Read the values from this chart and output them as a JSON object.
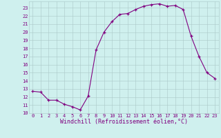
{
  "x_values": [
    0,
    1,
    2,
    3,
    4,
    5,
    6,
    7,
    8,
    9,
    10,
    11,
    12,
    13,
    14,
    15,
    16,
    17,
    18,
    19,
    20,
    21,
    22,
    23
  ],
  "y_values": [
    12.7,
    12.6,
    11.6,
    11.6,
    11.1,
    10.8,
    10.4,
    12.1,
    17.8,
    20.0,
    21.3,
    22.2,
    22.3,
    22.8,
    23.2,
    23.4,
    23.5,
    23.2,
    23.3,
    22.8,
    19.5,
    17.0,
    15.0,
    14.3
  ],
  "line_color": "#800080",
  "marker": "+",
  "marker_size": 3.5,
  "marker_color": "#800080",
  "bg_color": "#cff0ee",
  "grid_color": "#aac8c8",
  "xlabel": "Windchill (Refroidissement éolien,°C)",
  "xlabel_color": "#800080",
  "tick_color": "#800080",
  "ylim": [
    10,
    23.8
  ],
  "xlim": [
    -0.5,
    23.5
  ],
  "yticks": [
    10,
    11,
    12,
    13,
    14,
    15,
    16,
    17,
    18,
    19,
    20,
    21,
    22,
    23
  ],
  "xticks": [
    0,
    1,
    2,
    3,
    4,
    5,
    6,
    7,
    8,
    9,
    10,
    11,
    12,
    13,
    14,
    15,
    16,
    17,
    18,
    19,
    20,
    21,
    22,
    23
  ],
  "tick_fontsize": 5.0,
  "label_fontsize": 6.0
}
